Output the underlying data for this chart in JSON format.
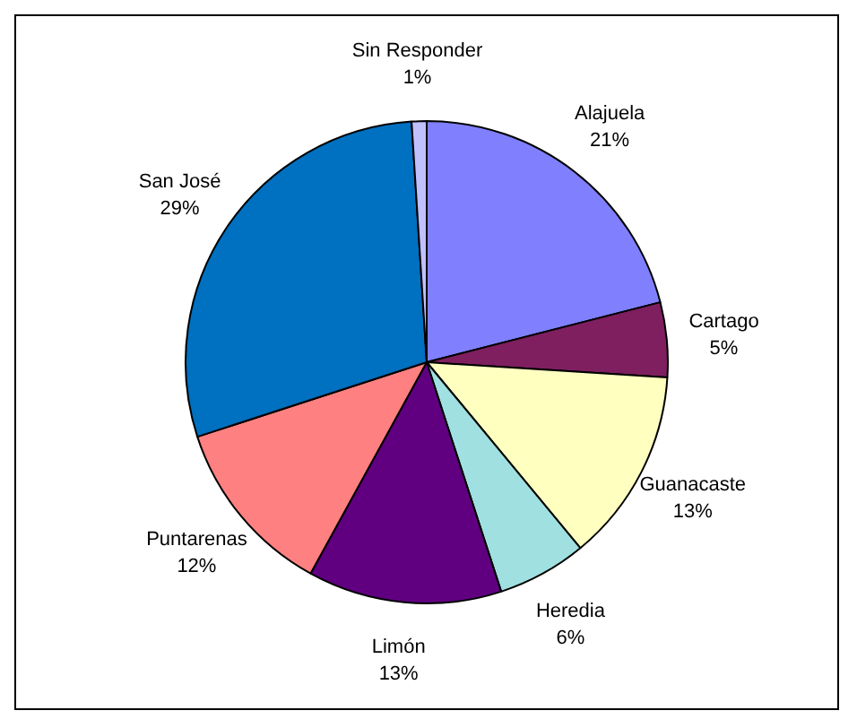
{
  "chart_data": {
    "type": "pie",
    "categories": [
      "Alajuela",
      "Cartago",
      "Guanacaste",
      "Heredia",
      "Limón",
      "Puntarenas",
      "San José",
      "Sin Responder"
    ],
    "values": [
      21,
      5,
      13,
      6,
      13,
      12,
      29,
      1
    ],
    "colors": [
      "#8080ff",
      "#7f1f5f",
      "#ffffc0",
      "#a0e0e0",
      "#600080",
      "#ff8080",
      "#0070c0",
      "#c0c0ff"
    ],
    "value_labels": [
      "21%",
      "5%",
      "13%",
      "6%",
      "13%",
      "12%",
      "29%",
      "1%"
    ],
    "legend": false
  }
}
